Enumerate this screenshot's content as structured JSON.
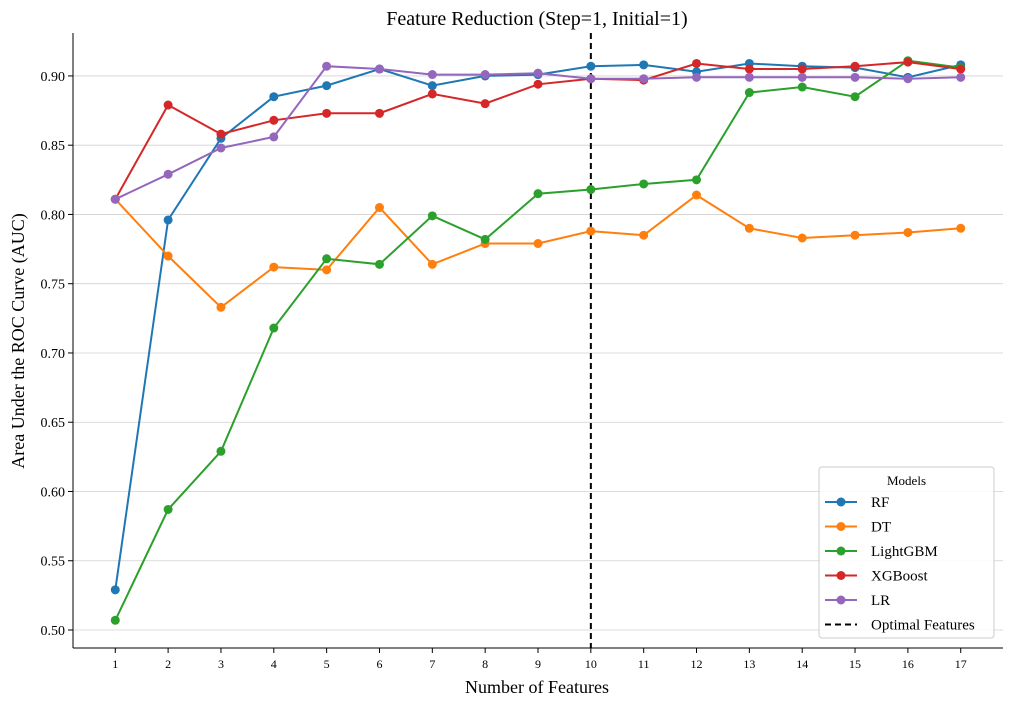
{
  "chart_data": {
    "type": "line",
    "title": "Feature Reduction (Step=1, Initial=1)",
    "xlabel": "Number of Features",
    "ylabel": "Area Under the ROC Curve (AUC)",
    "x": [
      1,
      2,
      3,
      4,
      5,
      6,
      7,
      8,
      9,
      10,
      11,
      12,
      13,
      14,
      15,
      16,
      17
    ],
    "xlim": [
      0.2,
      17.8
    ],
    "ylim": [
      0.487,
      0.931
    ],
    "yticks": [
      0.5,
      0.55,
      0.6,
      0.65,
      0.7,
      0.75,
      0.8,
      0.85,
      0.9
    ],
    "ytick_labels": [
      "0.50",
      "0.55",
      "0.60",
      "0.65",
      "0.70",
      "0.75",
      "0.80",
      "0.85",
      "0.90"
    ],
    "grid": "horizontal",
    "series": [
      {
        "name": "RF",
        "color": "#1f77b4",
        "values": [
          0.529,
          0.796,
          0.855,
          0.885,
          0.893,
          0.905,
          0.893,
          0.9,
          0.901,
          0.907,
          0.908,
          0.903,
          0.909,
          0.907,
          0.906,
          0.899,
          0.908
        ]
      },
      {
        "name": "DT",
        "color": "#ff7f0e",
        "values": [
          0.811,
          0.77,
          0.733,
          0.762,
          0.76,
          0.805,
          0.764,
          0.779,
          0.779,
          0.788,
          0.785,
          0.814,
          0.79,
          0.783,
          0.785,
          0.787,
          0.79
        ]
      },
      {
        "name": "LightGBM",
        "color": "#2ca02c",
        "values": [
          0.507,
          0.587,
          0.629,
          0.718,
          0.768,
          0.764,
          0.799,
          0.782,
          0.815,
          0.818,
          0.822,
          0.825,
          0.888,
          0.892,
          0.885,
          0.911,
          0.906
        ]
      },
      {
        "name": "XGBoost",
        "color": "#d62728",
        "values": [
          0.811,
          0.879,
          0.858,
          0.868,
          0.873,
          0.873,
          0.887,
          0.88,
          0.894,
          0.898,
          0.897,
          0.909,
          0.905,
          0.905,
          0.907,
          0.91,
          0.905
        ]
      },
      {
        "name": "LR",
        "color": "#9467bd",
        "values": [
          0.811,
          0.829,
          0.848,
          0.856,
          0.907,
          0.905,
          0.901,
          0.901,
          0.902,
          0.898,
          0.898,
          0.899,
          0.899,
          0.899,
          0.899,
          0.898,
          0.899
        ]
      }
    ],
    "reference_line": {
      "name": "Optimal Features",
      "x": 10,
      "color": "#000000",
      "style": "dashed"
    },
    "legend": {
      "title": "Models",
      "position": "bottom-right"
    }
  }
}
